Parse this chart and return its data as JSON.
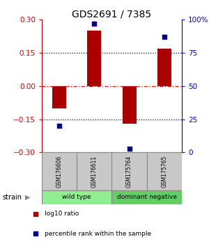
{
  "title": "GDS2691 / 7385",
  "samples": [
    "GSM176606",
    "GSM176611",
    "GSM175764",
    "GSM175765"
  ],
  "log10_ratio": [
    -0.1,
    0.25,
    -0.17,
    0.17
  ],
  "percentile_rank": [
    20,
    97,
    3,
    87
  ],
  "groups": [
    {
      "label": "wild type",
      "start": 0,
      "end": 2,
      "color": "#90EE90"
    },
    {
      "label": "dominant negative",
      "start": 2,
      "end": 4,
      "color": "#66CC66"
    }
  ],
  "group_label": "strain",
  "ylim_left": [
    -0.3,
    0.3
  ],
  "ylim_right": [
    0,
    100
  ],
  "yticks_left": [
    -0.3,
    -0.15,
    0,
    0.15,
    0.3
  ],
  "yticks_right": [
    0,
    25,
    50,
    75,
    100
  ],
  "ytick_labels_right": [
    "0",
    "25",
    "50",
    "75",
    "100%"
  ],
  "bar_color": "#AA0000",
  "dot_color": "#00008B",
  "bar_width": 0.4,
  "left_axis_color": "#CC0000",
  "right_axis_color": "#0000CC",
  "legend_items": [
    {
      "color": "#AA0000",
      "marker": "s",
      "label": "log10 ratio"
    },
    {
      "color": "#00008B",
      "marker": "s",
      "label": "percentile rank within the sample"
    }
  ],
  "sample_box_color": "#C8C8C8",
  "sample_box_edge": "#888888"
}
